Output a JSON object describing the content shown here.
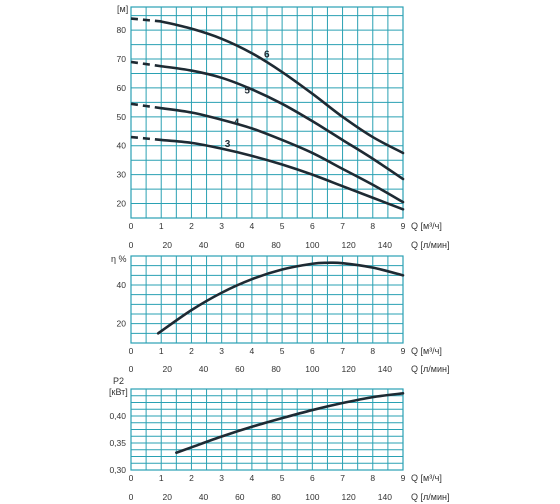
{
  "chart_data": [
    {
      "type": "line",
      "ylabel": "[м]",
      "xlabel": "Q [м³/ч]",
      "x2label": "Q [л/мин]",
      "xlim": [
        0,
        9
      ],
      "ylim": [
        15,
        88
      ],
      "x_ticks": [
        "0",
        "1",
        "2",
        "3",
        "4",
        "5",
        "6",
        "7",
        "8",
        "9"
      ],
      "x2_ticks": [
        "0",
        "20",
        "40",
        "60",
        "80",
        "100",
        "120",
        "140"
      ],
      "y_ticks": [
        "20",
        "30",
        "40",
        "50",
        "60",
        "70",
        "80"
      ],
      "grid": true,
      "series": [
        {
          "name": "3",
          "x": [
            1,
            2,
            3,
            4,
            5,
            6,
            7,
            8,
            9
          ],
          "y": [
            42,
            41,
            39,
            36.5,
            33.5,
            30,
            26,
            22,
            18
          ]
        },
        {
          "name": "4",
          "x": [
            1,
            2,
            3,
            4,
            5,
            6,
            7,
            8,
            9
          ],
          "y": [
            53,
            51.5,
            49,
            46,
            42,
            37.5,
            32,
            26.5,
            20.5
          ]
        },
        {
          "name": "5",
          "x": [
            1,
            2,
            3,
            4,
            5,
            6,
            7,
            8,
            9
          ],
          "y": [
            67.5,
            66,
            63.5,
            59.5,
            54.5,
            48.5,
            42,
            35.5,
            28.5
          ]
        },
        {
          "name": "6",
          "x": [
            1,
            2,
            3,
            4,
            5,
            6,
            7,
            8,
            9
          ],
          "y": [
            83,
            80.5,
            77,
            72,
            65.5,
            58,
            50,
            43,
            37.5
          ]
        }
      ],
      "extrapolated": [
        {
          "name": "3",
          "x": [
            0,
            1
          ],
          "y": [
            43,
            42
          ]
        },
        {
          "name": "4",
          "x": [
            0,
            1
          ],
          "y": [
            54.5,
            53
          ]
        },
        {
          "name": "5",
          "x": [
            0,
            1
          ],
          "y": [
            69,
            67.5
          ]
        },
        {
          "name": "6",
          "x": [
            0,
            1
          ],
          "y": [
            84,
            83
          ]
        }
      ]
    },
    {
      "type": "line",
      "ylabel": "η %",
      "xlabel": "Q [м³/ч]",
      "x2label": "Q [л/мин]",
      "xlim": [
        0,
        9
      ],
      "ylim": [
        10,
        55
      ],
      "x_ticks": [
        "0",
        "1",
        "2",
        "3",
        "4",
        "5",
        "6",
        "7",
        "8",
        "9"
      ],
      "x2_ticks": [
        "0",
        "20",
        "40",
        "60",
        "80",
        "100",
        "120",
        "140"
      ],
      "y_ticks": [
        "20",
        "40"
      ],
      "grid": true,
      "series": [
        {
          "name": "",
          "x": [
            0.9,
            2,
            3,
            4,
            5,
            6,
            6.5,
            7,
            8,
            9
          ],
          "y": [
            15,
            27,
            36,
            43,
            48,
            51,
            51.5,
            51.3,
            49,
            45
          ]
        }
      ]
    },
    {
      "type": "line",
      "ylabel": "[кВт]",
      "ylabel_top": "P2",
      "xlabel": "Q [м³/ч]",
      "x2label": "Q [л/мин]",
      "xlim": [
        0,
        9
      ],
      "ylim": [
        0.3,
        0.45
      ],
      "x_ticks": [
        "0",
        "1",
        "2",
        "3",
        "4",
        "5",
        "6",
        "7",
        "8",
        "9"
      ],
      "x2_ticks": [
        "0",
        "20",
        "40",
        "60",
        "80",
        "100",
        "120",
        "140"
      ],
      "y_ticks": [
        "0,30",
        "0,35",
        "0,40"
      ],
      "grid": true,
      "series": [
        {
          "name": "",
          "x": [
            1.5,
            2,
            3,
            4,
            5,
            6,
            7,
            8,
            9
          ],
          "y": [
            0.332,
            0.342,
            0.362,
            0.38,
            0.396,
            0.411,
            0.424,
            0.435,
            0.442
          ]
        }
      ]
    }
  ]
}
